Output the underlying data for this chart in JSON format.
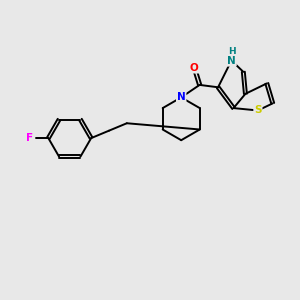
{
  "bg_color": "#e8e8e8",
  "bond_color": "#000000",
  "atom_colors": {
    "F": "#ff00ff",
    "N": "#0000ff",
    "O": "#ff0000",
    "S": "#cccc00",
    "NH": "#008080",
    "C": "#000000"
  }
}
